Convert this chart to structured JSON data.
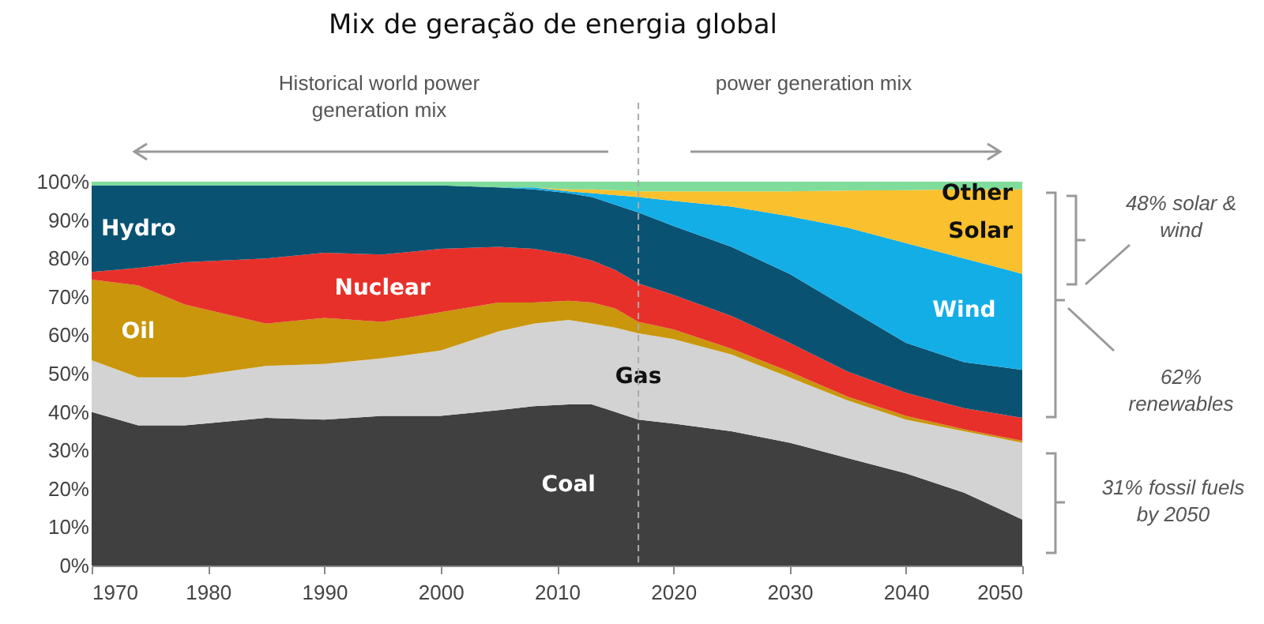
{
  "chart_data": {
    "type": "area",
    "stacked": true,
    "title": "Mix de geração de energia global",
    "x": [
      1970,
      1974,
      1978,
      1985,
      1990,
      1995,
      2000,
      2005,
      2008,
      2011,
      2013,
      2015,
      2017,
      2020,
      2025,
      2030,
      2035,
      2040,
      2045,
      2050
    ],
    "series": [
      {
        "name": "Coal",
        "color": "#404040",
        "values": [
          40,
          36.5,
          36.5,
          38.5,
          38,
          39,
          39,
          40.5,
          41.5,
          42,
          42,
          40,
          38,
          37,
          35,
          32,
          28,
          24,
          19,
          12
        ]
      },
      {
        "name": "Gas",
        "color": "#d3d3d3",
        "values": [
          13.5,
          12.5,
          12.5,
          13.5,
          14.5,
          15,
          17,
          20.5,
          21.5,
          22,
          21,
          22,
          22.5,
          22,
          20,
          17,
          15,
          14,
          16,
          20
        ]
      },
      {
        "name": "Oil",
        "color": "#c9960c",
        "values": [
          21,
          24,
          19,
          11,
          12,
          9.5,
          10,
          7.5,
          5.5,
          5,
          5.5,
          5,
          3,
          2.5,
          1.5,
          1.5,
          1,
          1,
          0.5,
          0.5
        ]
      },
      {
        "name": "Nuclear",
        "color": "#e8302a",
        "values": [
          2,
          4.5,
          11,
          17,
          17,
          17.5,
          16.5,
          14.5,
          14,
          12,
          11,
          10,
          10,
          9,
          8.5,
          7.5,
          6.5,
          6,
          5.5,
          6
        ]
      },
      {
        "name": "Hydro",
        "color": "#0a5272",
        "values": [
          22.5,
          21.5,
          20,
          19,
          17.5,
          18,
          16.5,
          15.5,
          15.5,
          16,
          16.5,
          17,
          18.5,
          18,
          18,
          18,
          16.5,
          13,
          12,
          12.5
        ]
      },
      {
        "name": "Wind",
        "color": "#14aee6",
        "values": [
          0,
          0,
          0,
          0,
          0,
          0,
          0,
          0,
          0.5,
          0.5,
          1,
          2.5,
          4,
          6.5,
          10.5,
          15,
          21,
          26,
          27,
          25
        ]
      },
      {
        "name": "Solar",
        "color": "#fbc02d",
        "values": [
          0,
          0,
          0,
          0,
          0,
          0,
          0,
          0,
          0,
          0.5,
          1,
          1.3,
          1.5,
          2.5,
          4,
          6.5,
          9.7,
          13.8,
          18,
          22
        ]
      },
      {
        "name": "Other",
        "color": "#7fdc9a",
        "values": [
          1,
          1,
          1,
          1,
          1,
          1,
          1,
          1.5,
          1.5,
          2,
          2,
          2.2,
          2.5,
          2.5,
          2.5,
          2.5,
          2.3,
          2.2,
          2,
          2
        ]
      }
    ],
    "xlim": [
      1970,
      2050
    ],
    "xticks": [
      1970,
      1980,
      1990,
      2000,
      2010,
      2020,
      2030,
      2040,
      2050
    ],
    "ylim": [
      0,
      100
    ],
    "yticks": [
      {
        "value": 0,
        "label": "0%"
      },
      {
        "value": 10,
        "label": "10%"
      },
      {
        "value": 20,
        "label": "20%"
      },
      {
        "value": 30,
        "label": "30%"
      },
      {
        "value": 40,
        "label": "40%"
      },
      {
        "value": 50,
        "label": "50%"
      },
      {
        "value": 60,
        "label": "60%"
      },
      {
        "value": 70,
        "label": "70%"
      },
      {
        "value": 80,
        "label": "80%"
      },
      {
        "value": 90,
        "label": "90%"
      },
      {
        "value": 100,
        "label": "100%"
      }
    ],
    "ref_lines": [
      {
        "axis": "x",
        "value": 2017,
        "color": "#aaaaaa",
        "line_style": "dashed"
      }
    ],
    "annotations": [
      "Historical world power generation mix",
      "power generation mix",
      "48% solar & wind",
      "62% renewables",
      "31% fossil fuels by 2050"
    ],
    "grid": false,
    "legend": false
  }
}
